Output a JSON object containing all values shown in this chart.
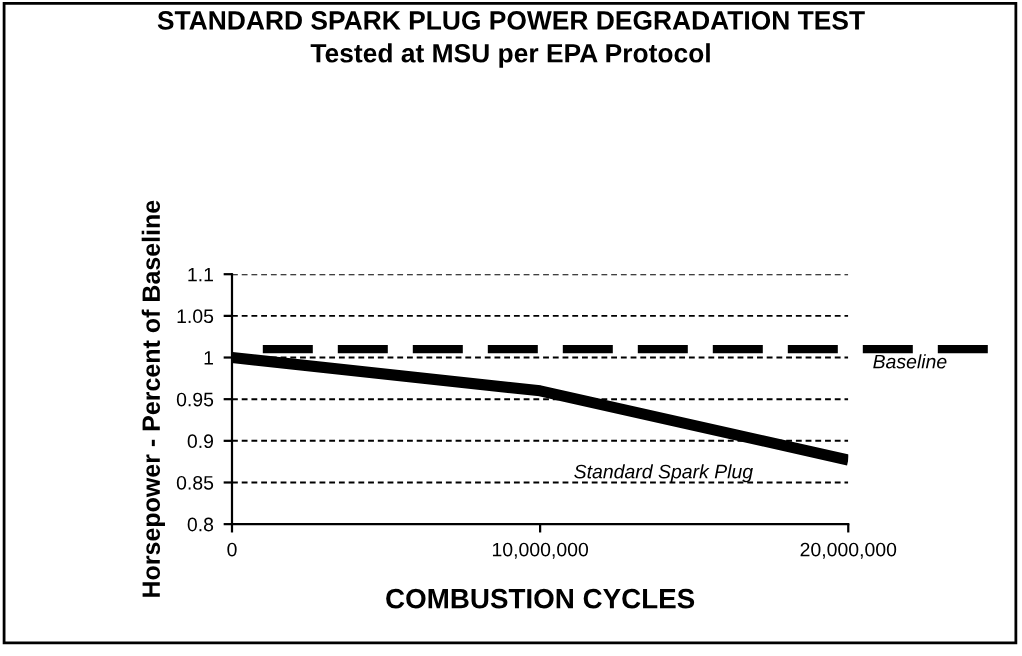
{
  "chart_data": {
    "type": "line",
    "title": "STANDARD SPARK PLUG POWER DEGRADATION TEST",
    "subtitle": "Tested at MSU per EPA Protocol",
    "xlabel": "COMBUSTION CYCLES",
    "ylabel": "Horsepower - Percent of Baseline",
    "x": [
      0,
      10000000,
      20000000
    ],
    "series": [
      {
        "name": "Standard Spark Plug",
        "color": "#000000",
        "values": [
          1.0,
          0.96,
          0.877
        ]
      }
    ],
    "xlim": [
      0,
      20000000
    ],
    "xticks": [
      {
        "value": 0,
        "label": "0"
      },
      {
        "value": 10000000,
        "label": "10,000,000"
      },
      {
        "value": 20000000,
        "label": "20,000,000"
      }
    ],
    "ylim": [
      0.8,
      1.1
    ],
    "yticks": [
      0.8,
      0.85,
      0.9,
      0.95,
      1,
      1.05,
      1.1
    ],
    "ref_lines": [
      {
        "axis": "y",
        "value": 1.01,
        "label": "Baseline",
        "color": "#000000",
        "line_style": "dashed"
      }
    ],
    "grid": "y",
    "legend": false,
    "marker": "none",
    "line_style": "solid"
  }
}
